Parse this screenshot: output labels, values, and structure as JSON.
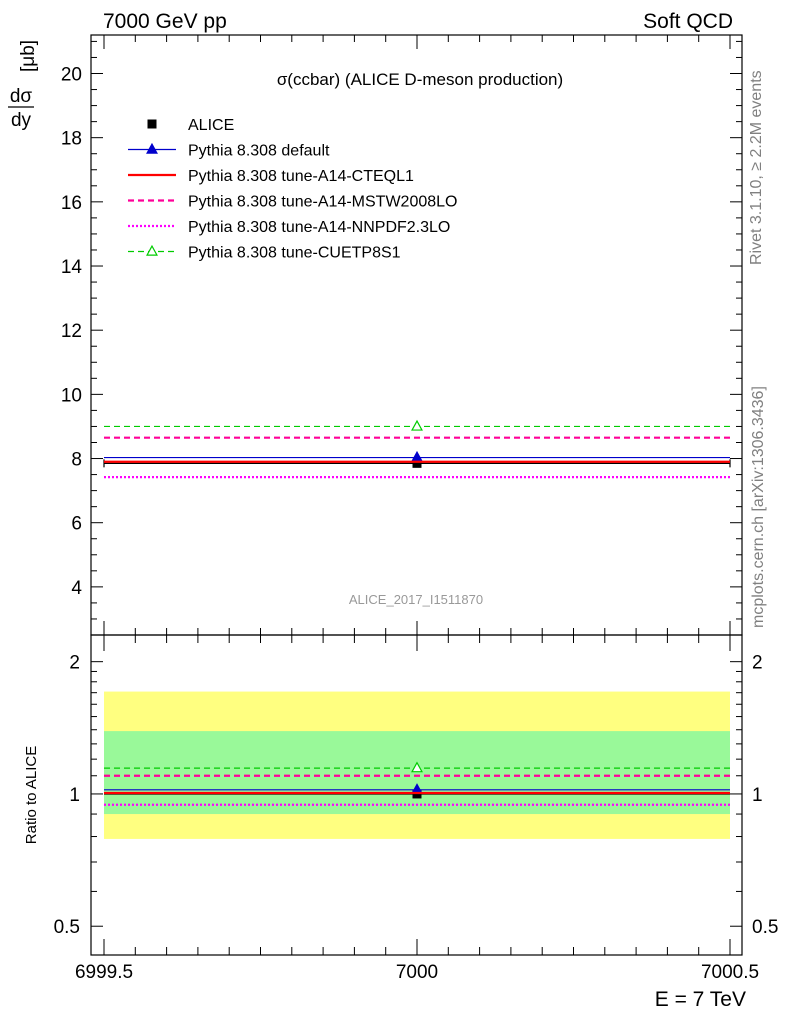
{
  "header": {
    "left": "7000 GeV pp",
    "right": "Soft QCD"
  },
  "side_labels": {
    "rivet": "Rivet 3.1.10, ≥ 2.2M events",
    "mcplots": "mcplots.cern.ch [arXiv:1306.3436]"
  },
  "chart_data": [
    {
      "type": "line",
      "title": "σ(ccbar) (ALICE D-meson production)",
      "ylabel_num": "dσ",
      "ylabel_den": "dy",
      "ylabel_unit": "[μb]",
      "analysis_tag": "ALICE_2017_I1511870",
      "xlim": [
        6999.5,
        7000.5
      ],
      "ylim": [
        2.5,
        21.2
      ],
      "yticks": [
        4,
        6,
        8,
        10,
        12,
        14,
        16,
        18,
        20
      ],
      "ytick_labels": [
        "4",
        "6",
        "8",
        "10",
        "12",
        "14",
        "16",
        "18",
        "20"
      ],
      "grid": false,
      "legend_position": "top-left",
      "series": [
        {
          "name": "ALICE",
          "style": "data",
          "color": "#000000",
          "x": [
            7000
          ],
          "y": [
            7.85
          ],
          "xerr": 0.5
        },
        {
          "name": "Pythia 8.308 default",
          "style": "solid-triangle",
          "color": "#0000cc",
          "x": [
            7000
          ],
          "y": [
            8.03
          ]
        },
        {
          "name": "Pythia 8.308 tune-A14-CTEQL1",
          "style": "solid",
          "color": "#ff0000",
          "x": [
            7000
          ],
          "y": [
            7.9
          ]
        },
        {
          "name": "Pythia 8.308 tune-A14-MSTW2008LO",
          "style": "dashed",
          "color": "#ff0099",
          "x": [
            7000
          ],
          "y": [
            8.65
          ]
        },
        {
          "name": "Pythia 8.308 tune-A14-NNPDF2.3LO",
          "style": "dotted",
          "color": "#ff00ff",
          "x": [
            7000
          ],
          "y": [
            7.42
          ]
        },
        {
          "name": "Pythia 8.308 tune-CUETP8S1",
          "style": "dashed-open-triangle",
          "color": "#00cc00",
          "x": [
            7000
          ],
          "y": [
            9.0
          ]
        }
      ]
    },
    {
      "type": "line",
      "ylabel": "Ratio to ALICE",
      "xlabel": "E = 7 TeV",
      "xlim": [
        6999.5,
        7000.5
      ],
      "xticks": [
        6999.5,
        7000,
        7000.5
      ],
      "xtick_labels": [
        "6999.5",
        "7000",
        "7000.5"
      ],
      "ylim": [
        0.43,
        2.3
      ],
      "yscale": "log",
      "yticks": [
        0.5,
        1,
        2
      ],
      "ytick_labels": [
        "0.5",
        "1",
        "2"
      ],
      "bands": [
        {
          "name": "total uncertainty",
          "color": "#ffff80",
          "low": 0.79,
          "high": 1.71
        },
        {
          "name": "stat uncertainty",
          "color": "#99f999",
          "low": 0.9,
          "high": 1.39
        }
      ],
      "series": [
        {
          "name": "ALICE",
          "style": "data",
          "color": "#000000",
          "x": [
            7000
          ],
          "y": [
            1.0
          ]
        },
        {
          "name": "Pythia 8.308 default",
          "style": "solid-triangle",
          "color": "#0000cc",
          "x": [
            7000
          ],
          "y": [
            1.022
          ]
        },
        {
          "name": "Pythia 8.308 tune-A14-CTEQL1",
          "style": "solid",
          "color": "#ff0000",
          "x": [
            7000
          ],
          "y": [
            1.005
          ]
        },
        {
          "name": "Pythia 8.308 tune-A14-MSTW2008LO",
          "style": "dashed",
          "color": "#ff0099",
          "x": [
            7000
          ],
          "y": [
            1.1
          ]
        },
        {
          "name": "Pythia 8.308 tune-A14-NNPDF2.3LO",
          "style": "dotted",
          "color": "#ff00ff",
          "x": [
            7000
          ],
          "y": [
            0.945
          ]
        },
        {
          "name": "Pythia 8.308 tune-CUETP8S1",
          "style": "dashed-open-triangle",
          "color": "#00cc00",
          "x": [
            7000
          ],
          "y": [
            1.145
          ]
        }
      ]
    }
  ]
}
